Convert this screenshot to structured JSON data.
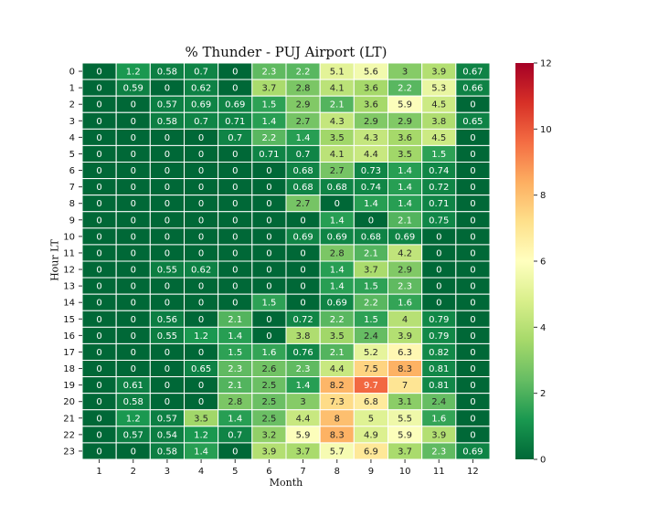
{
  "chart_data": {
    "type": "heatmap",
    "title": "% Thunder - PUJ Airport (LT)",
    "xlabel": "Month",
    "ylabel": "Hour LT",
    "x_categories": [
      "1",
      "2",
      "3",
      "4",
      "5",
      "6",
      "7",
      "8",
      "9",
      "10",
      "11",
      "12"
    ],
    "y_categories": [
      "0",
      "1",
      "2",
      "3",
      "4",
      "5",
      "6",
      "7",
      "8",
      "9",
      "10",
      "11",
      "12",
      "13",
      "14",
      "15",
      "16",
      "17",
      "18",
      "19",
      "20",
      "21",
      "22",
      "23"
    ],
    "colormap": "RdYlGn_r",
    "colorbar": {
      "min": 0,
      "max": 12,
      "ticks": [
        "0",
        "2",
        "4",
        "6",
        "8",
        "10",
        "12"
      ]
    },
    "values": [
      [
        0,
        1.2,
        0.58,
        0.7,
        0,
        2.3,
        2.2,
        5.1,
        5.6,
        3,
        3.9,
        0.67
      ],
      [
        0,
        0.59,
        0,
        0.62,
        0,
        3.7,
        2.8,
        4.1,
        3.6,
        2.2,
        5.3,
        0.66
      ],
      [
        0,
        0,
        0.57,
        0.69,
        0.69,
        1.5,
        2.9,
        2.1,
        3.6,
        5.9,
        4.5,
        0
      ],
      [
        0,
        0,
        0.58,
        0.7,
        0.71,
        1.4,
        2.7,
        4.3,
        2.9,
        2.9,
        3.8,
        0.65
      ],
      [
        0,
        0,
        0,
        0,
        0.7,
        2.2,
        1.4,
        3.5,
        4.3,
        3.6,
        4.5,
        0
      ],
      [
        0,
        0,
        0,
        0,
        0,
        0.71,
        0.7,
        4.1,
        4.4,
        3.5,
        1.5,
        0
      ],
      [
        0,
        0,
        0,
        0,
        0,
        0,
        0.68,
        2.7,
        0.73,
        1.4,
        0.74,
        0
      ],
      [
        0,
        0,
        0,
        0,
        0,
        0,
        0.68,
        0.68,
        0.74,
        1.4,
        0.72,
        0
      ],
      [
        0,
        0,
        0,
        0,
        0,
        0,
        2.7,
        0,
        1.4,
        1.4,
        0.71,
        0
      ],
      [
        0,
        0,
        0,
        0,
        0,
        0,
        0,
        1.4,
        0,
        2.1,
        0.75,
        0
      ],
      [
        0,
        0,
        0,
        0,
        0,
        0,
        0.69,
        0.69,
        0.68,
        0.69,
        0,
        0
      ],
      [
        0,
        0,
        0,
        0,
        0,
        0,
        0,
        2.8,
        2.1,
        4.2,
        0,
        0
      ],
      [
        0,
        0,
        0.55,
        0.62,
        0,
        0,
        0,
        1.4,
        3.7,
        2.9,
        0,
        0
      ],
      [
        0,
        0,
        0,
        0,
        0,
        0,
        0,
        1.4,
        1.5,
        2.3,
        0,
        0
      ],
      [
        0,
        0,
        0,
        0,
        0,
        1.5,
        0,
        0.69,
        2.2,
        1.6,
        0,
        0
      ],
      [
        0,
        0,
        0.56,
        0,
        2.1,
        0,
        0.72,
        2.2,
        1.5,
        4,
        0.79,
        0
      ],
      [
        0,
        0,
        0.55,
        1.2,
        1.4,
        0,
        3.8,
        3.5,
        2.4,
        3.9,
        0.79,
        0
      ],
      [
        0,
        0,
        0,
        0,
        1.5,
        1.6,
        0.76,
        2.1,
        5.2,
        6.3,
        0.82,
        0
      ],
      [
        0,
        0,
        0,
        0.65,
        2.3,
        2.6,
        2.3,
        4.4,
        7.5,
        8.3,
        0.81,
        0
      ],
      [
        0,
        0.61,
        0,
        0,
        2.1,
        2.5,
        1.4,
        8.2,
        9.7,
        7,
        0.81,
        0
      ],
      [
        0,
        0.58,
        0,
        0,
        2.8,
        2.5,
        3,
        7.3,
        6.8,
        3.1,
        2.4,
        0
      ],
      [
        0,
        1.2,
        0.57,
        3.5,
        1.4,
        2.5,
        4.4,
        8,
        5,
        5.5,
        1.6,
        0
      ],
      [
        0,
        0.57,
        0.54,
        1.2,
        0.7,
        3.2,
        5.9,
        8.3,
        4.9,
        5.9,
        3.9,
        0
      ],
      [
        0,
        0,
        0.58,
        1.4,
        0,
        3.9,
        3.7,
        5.7,
        6.9,
        3.7,
        2.3,
        0.69
      ]
    ]
  }
}
